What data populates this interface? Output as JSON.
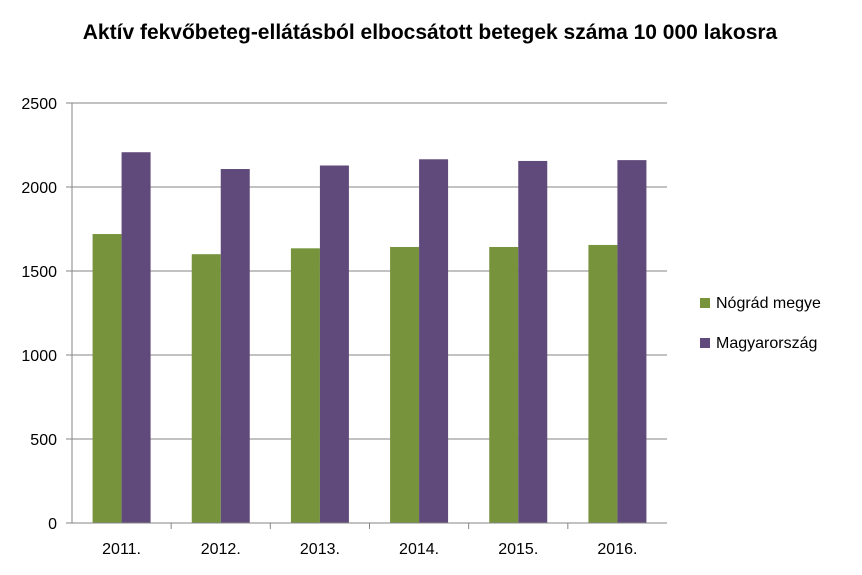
{
  "chart_data": {
    "type": "bar",
    "title": "Aktív fekvőbeteg-ellátásból elbocsátott betegek száma 10 000 lakosra",
    "categories": [
      "2011.",
      "2012.",
      "2013.",
      "2014.",
      "2015.",
      "2016."
    ],
    "series": [
      {
        "name": "Nógrád megye",
        "color": "#77933C",
        "values": [
          1720,
          1600,
          1635,
          1643,
          1643,
          1655
        ]
      },
      {
        "name": "Magyarország",
        "color": "#604A7B",
        "values": [
          2207,
          2107,
          2128,
          2165,
          2155,
          2160
        ]
      }
    ],
    "ylim": [
      0,
      2500
    ],
    "yticks": [
      "0",
      "500",
      "1000",
      "1500",
      "2000",
      "2500"
    ],
    "grid": true,
    "legend_position": "right"
  }
}
